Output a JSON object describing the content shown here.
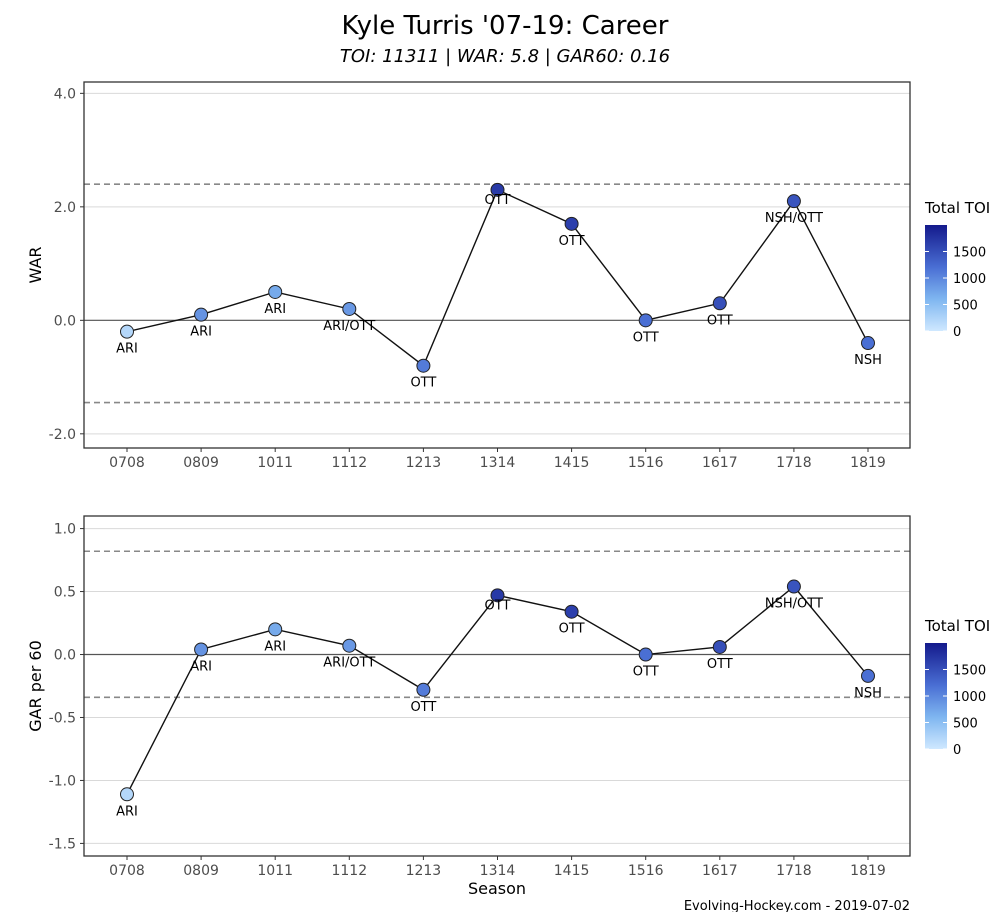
{
  "title": "Kyle Turris '07-19: Career",
  "subtitle": "TOI: 11311 | WAR: 5.8 | GAR60: 0.16",
  "caption": "Evolving-Hockey.com - 2019-07-02",
  "x_axis_title": "Season",
  "chart_data": [
    {
      "type": "line",
      "ylabel": "WAR",
      "categories": [
        "0708",
        "0809",
        "1011",
        "1112",
        "1213",
        "1314",
        "1415",
        "1516",
        "1617",
        "1718",
        "1819"
      ],
      "values": [
        -0.2,
        0.1,
        0.5,
        0.2,
        -0.8,
        2.3,
        1.7,
        0.0,
        0.3,
        2.1,
        -0.4
      ],
      "teams": [
        "ARI",
        "ARI",
        "ARI",
        "ARI/OTT",
        "OTT",
        "OTT",
        "OTT",
        "OTT",
        "OTT",
        "NSH/OTT",
        "NSH"
      ],
      "toi": [
        200,
        900,
        700,
        850,
        1100,
        1700,
        1650,
        1200,
        1500,
        1450,
        1200
      ],
      "ylim": [
        -2.25,
        4.2
      ],
      "yticks": [
        -2.0,
        0.0,
        2.0,
        4.0
      ],
      "ytick_labels": [
        "-2.0",
        "0.0",
        "2.0",
        "4.0"
      ],
      "ref_lines": [
        2.4,
        -1.45
      ],
      "legend": {
        "title": "Total TOI",
        "ticks": [
          0,
          500,
          1000,
          1500
        ],
        "max": 2000,
        "placement": "right"
      }
    },
    {
      "type": "line",
      "ylabel": "GAR per 60",
      "categories": [
        "0708",
        "0809",
        "1011",
        "1112",
        "1213",
        "1314",
        "1415",
        "1516",
        "1617",
        "1718",
        "1819"
      ],
      "values": [
        -1.11,
        0.04,
        0.2,
        0.07,
        -0.28,
        0.47,
        0.34,
        0.0,
        0.06,
        0.54,
        -0.17
      ],
      "teams": [
        "ARI",
        "ARI",
        "ARI",
        "ARI/OTT",
        "OTT",
        "OTT",
        "OTT",
        "OTT",
        "OTT",
        "NSH/OTT",
        "NSH"
      ],
      "toi": [
        200,
        900,
        700,
        850,
        1100,
        1700,
        1650,
        1200,
        1500,
        1450,
        1200
      ],
      "ylim": [
        -1.6,
        1.1
      ],
      "yticks": [
        -1.5,
        -1.0,
        -0.5,
        0.0,
        0.5,
        1.0
      ],
      "ytick_labels": [
        "-1.5",
        "-1.0",
        "-0.5",
        "0.0",
        "0.5",
        "1.0"
      ],
      "ref_lines": [
        0.82,
        -0.34
      ],
      "legend": {
        "title": "Total TOI",
        "ticks": [
          0,
          500,
          1000,
          1500
        ],
        "max": 2000,
        "placement": "right"
      }
    }
  ]
}
